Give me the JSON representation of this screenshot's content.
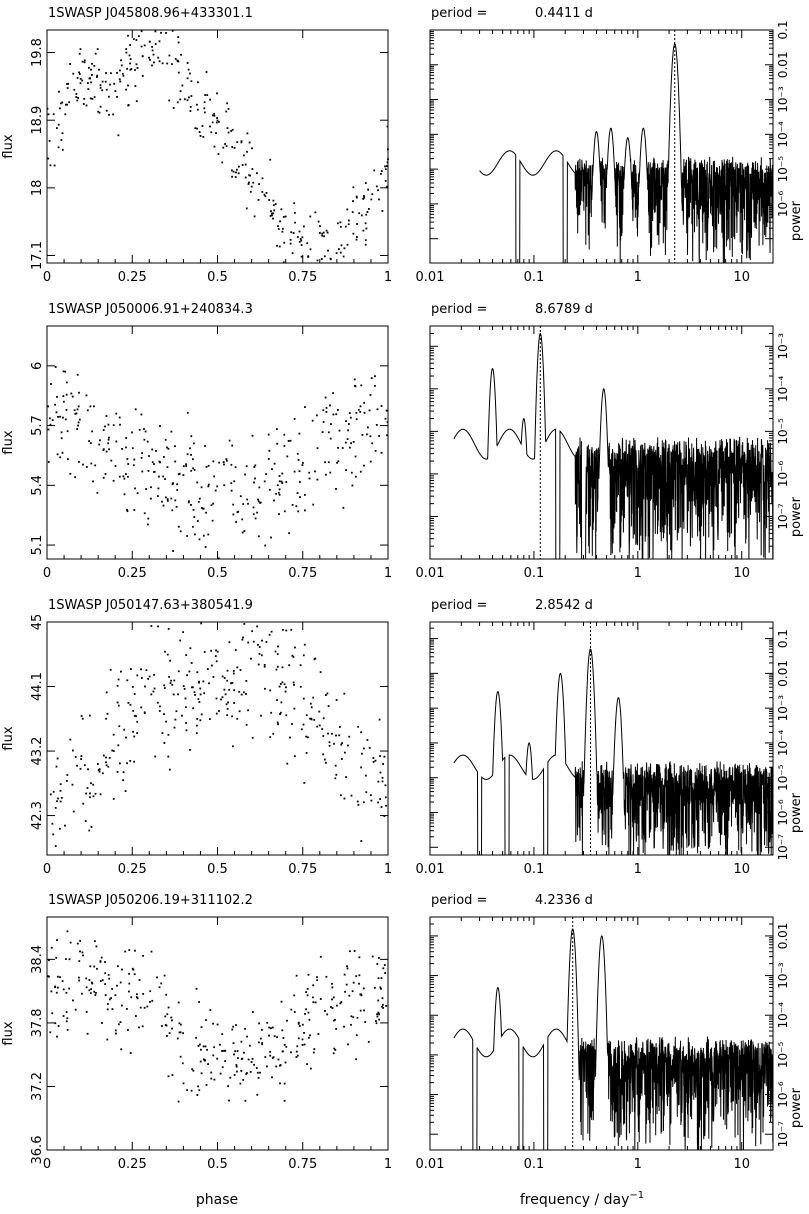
{
  "figure": {
    "phase_label": "phase",
    "freq_label_main": "frequency / day",
    "freq_label_exp": "−1",
    "flux_label": "flux",
    "power_label": "power",
    "period_prefix": "period =",
    "period_unit": "d"
  },
  "chart_data": [
    {
      "type": "scatter",
      "title": "1SWASP J045808.96+433301.1",
      "xlabel": "phase",
      "ylabel": "flux",
      "xlim": [
        0,
        1
      ],
      "ylim": [
        17.0,
        20.1
      ],
      "x_ticks": [
        "0",
        "0.25",
        "0.5",
        "0.75",
        "1"
      ],
      "y_ticks": [
        "17.1",
        "18",
        "18.9",
        "19.8"
      ],
      "light_curve": [
        [
          0.0,
          18.6
        ],
        [
          0.1,
          19.5
        ],
        [
          0.2,
          19.3
        ],
        [
          0.3,
          20.0
        ],
        [
          0.35,
          19.7
        ],
        [
          0.4,
          19.4
        ],
        [
          0.45,
          19.1
        ],
        [
          0.5,
          18.9
        ],
        [
          0.55,
          18.5
        ],
        [
          0.6,
          18.2
        ],
        [
          0.65,
          17.8
        ],
        [
          0.7,
          17.45
        ],
        [
          0.75,
          17.3
        ],
        [
          0.8,
          17.25
        ],
        [
          0.85,
          17.3
        ],
        [
          0.9,
          17.45
        ],
        [
          0.95,
          17.8
        ],
        [
          1.0,
          18.4
        ]
      ],
      "scatter_width": 0.5,
      "period": {
        "value": "0.4411",
        "frequency": 2.267
      },
      "periodogram": {
        "type": "line",
        "xscale": "log",
        "yscale": "log",
        "xlim": [
          0.01,
          20
        ],
        "ylim": [
          2e-07,
          1.0
        ],
        "x_ticks": [
          "0.01",
          "0.1",
          "1",
          "10"
        ],
        "y_ticks": [
          "10⁻⁶",
          "10⁻⁵",
          "10⁻⁴",
          "10⁻³",
          "0.01",
          "0.1"
        ],
        "f_start": 0.03,
        "base_level": 0.00015,
        "peaks": [
          [
            0.4,
            0.0012
          ],
          [
            0.55,
            0.0015
          ],
          [
            0.8,
            0.0008
          ],
          [
            1.13,
            0.0015
          ],
          [
            2.267,
            0.4
          ]
        ],
        "dips": [
          0.07,
          0.2
        ]
      }
    },
    {
      "type": "scatter",
      "title": "1SWASP J050006.91+240834.3",
      "xlabel": "phase",
      "ylabel": "flux",
      "xlim": [
        0,
        1
      ],
      "ylim": [
        5.03,
        6.2
      ],
      "x_ticks": [
        "0",
        "0.25",
        "0.5",
        "0.75",
        "1"
      ],
      "y_ticks": [
        "5.1",
        "5.4",
        "5.7",
        "6"
      ],
      "light_curve": [
        [
          0.0,
          5.8
        ],
        [
          0.1,
          5.62
        ],
        [
          0.2,
          5.55
        ],
        [
          0.3,
          5.45
        ],
        [
          0.4,
          5.38
        ],
        [
          0.5,
          5.35
        ],
        [
          0.6,
          5.38
        ],
        [
          0.7,
          5.45
        ],
        [
          0.8,
          5.55
        ],
        [
          0.9,
          5.65
        ],
        [
          1.0,
          5.8
        ]
      ],
      "scatter_width": 0.3,
      "period": {
        "value": "8.6789",
        "frequency": 0.1152
      },
      "periodogram": {
        "type": "line",
        "xscale": "log",
        "yscale": "log",
        "xlim": [
          0.01,
          20
        ],
        "ylim": [
          1e-08,
          0.003
        ],
        "x_ticks": [
          "0.01",
          "0.1",
          "1",
          "10"
        ],
        "y_ticks": [
          "10⁻⁷",
          "10⁻⁶",
          "10⁻⁵",
          "10⁻⁴",
          "10⁻³"
        ],
        "f_start": 0.017,
        "base_level": 5e-06,
        "peaks": [
          [
            0.04,
            0.0003
          ],
          [
            0.08,
            2e-05
          ],
          [
            0.1152,
            0.002
          ],
          [
            0.15,
            1e-05
          ],
          [
            0.47,
            0.0001
          ]
        ],
        "dips": [
          0.17,
          0.3
        ]
      }
    },
    {
      "type": "scatter",
      "title": "1SWASP J050147.63+380541.9",
      "xlabel": "phase",
      "ylabel": "flux",
      "xlim": [
        0,
        1
      ],
      "ylim": [
        41.75,
        45.0
      ],
      "x_ticks": [
        "0",
        "0.25",
        "0.5",
        "0.75",
        "1"
      ],
      "y_ticks": [
        "42.3",
        "43.2",
        "44.1",
        "45"
      ],
      "light_curve": [
        [
          0.0,
          42.2
        ],
        [
          0.1,
          42.8
        ],
        [
          0.2,
          43.4
        ],
        [
          0.3,
          44.0
        ],
        [
          0.4,
          44.05
        ],
        [
          0.5,
          44.1
        ],
        [
          0.6,
          44.3
        ],
        [
          0.7,
          44.2
        ],
        [
          0.8,
          43.5
        ],
        [
          0.9,
          43.1
        ],
        [
          1.0,
          42.7
        ]
      ],
      "scatter_width": 0.9,
      "period": {
        "value": "2.8542",
        "frequency": 0.3504
      },
      "periodogram": {
        "type": "line",
        "xscale": "log",
        "yscale": "log",
        "xlim": [
          0.01,
          20
        ],
        "ylim": [
          6e-08,
          0.3
        ],
        "x_ticks": [
          "0.01",
          "0.1",
          "1",
          "10"
        ],
        "y_ticks": [
          "10⁻⁷",
          "10⁻⁶",
          "10⁻⁵",
          "10⁻⁴",
          "10⁻³",
          "0.01",
          "0.1"
        ],
        "f_start": 0.017,
        "base_level": 2e-05,
        "peaks": [
          [
            0.045,
            0.003
          ],
          [
            0.09,
            0.0001
          ],
          [
            0.18,
            0.01
          ],
          [
            0.3504,
            0.05
          ],
          [
            0.65,
            0.002
          ]
        ],
        "dips": [
          0.03,
          0.055,
          0.13
        ]
      }
    },
    {
      "type": "scatter",
      "title": "1SWASP J050206.19+311102.2",
      "xlabel": "phase",
      "ylabel": "flux",
      "xlim": [
        0,
        1
      ],
      "ylim": [
        36.6,
        38.8
      ],
      "x_ticks": [
        "0",
        "0.25",
        "0.5",
        "0.75",
        "1"
      ],
      "y_ticks": [
        "36.6",
        "37.2",
        "37.8",
        "38.4"
      ],
      "light_curve": [
        [
          0.0,
          38.1
        ],
        [
          0.1,
          38.2
        ],
        [
          0.2,
          38.0
        ],
        [
          0.3,
          38.1
        ],
        [
          0.4,
          37.6
        ],
        [
          0.5,
          37.45
        ],
        [
          0.6,
          37.5
        ],
        [
          0.7,
          37.6
        ],
        [
          0.8,
          37.9
        ],
        [
          0.9,
          38.0
        ],
        [
          1.0,
          38.1
        ]
      ],
      "scatter_width": 0.45,
      "period": {
        "value": "4.2336",
        "frequency": 0.2362
      },
      "periodogram": {
        "type": "line",
        "xscale": "log",
        "yscale": "log",
        "xlim": [
          0.01,
          20
        ],
        "ylim": [
          4e-08,
          0.03
        ],
        "x_ticks": [
          "0.01",
          "0.1",
          "1",
          "10"
        ],
        "y_ticks": [
          "10⁻⁷",
          "10⁻⁶",
          "10⁻⁵",
          "10⁻⁴",
          "10⁻³",
          "0.01"
        ],
        "f_start": 0.017,
        "base_level": 2e-05,
        "peaks": [
          [
            0.045,
            0.0005
          ],
          [
            0.2362,
            0.015
          ],
          [
            0.45,
            0.01
          ]
        ],
        "dips": [
          0.027,
          0.075,
          0.13
        ]
      }
    }
  ]
}
